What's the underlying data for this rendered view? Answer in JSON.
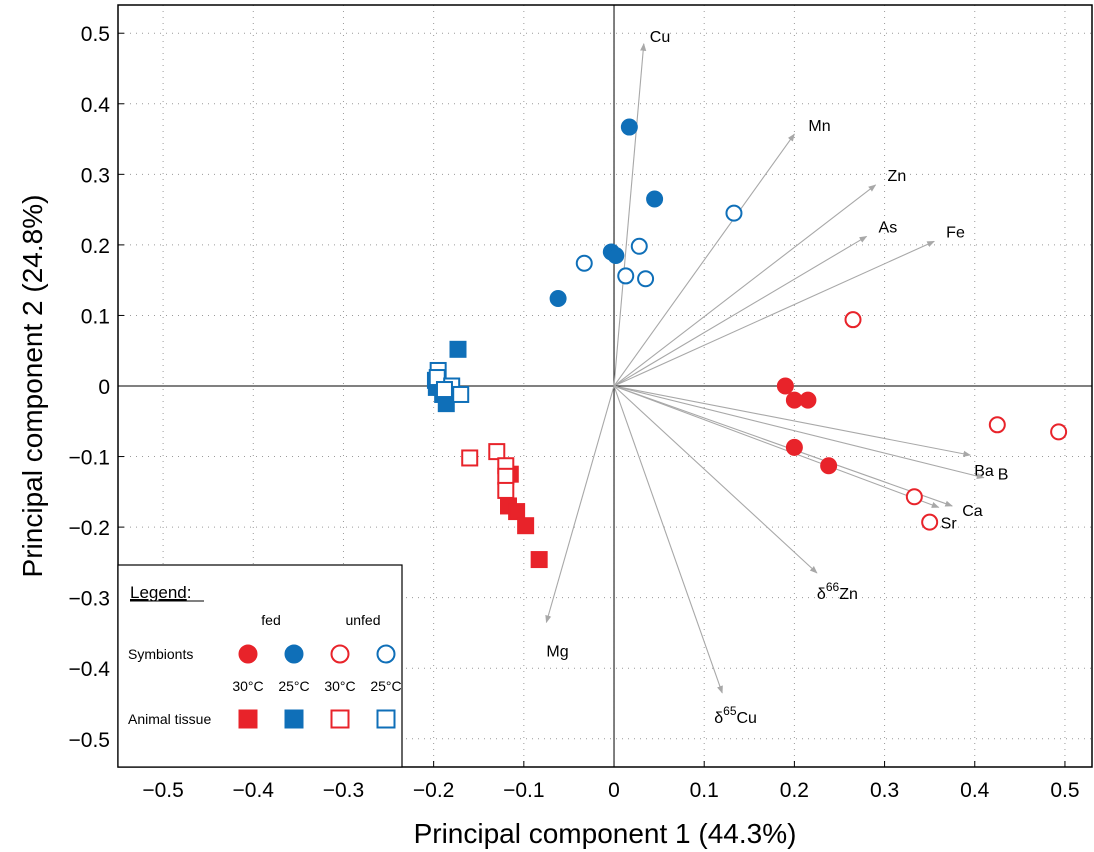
{
  "chart_data": {
    "type": "scatter",
    "xlabel": "Principal component 1 (44.3%)",
    "ylabel": "Principal component 2 (24.8%)",
    "xlim": [
      -0.55,
      0.53
    ],
    "ylim": [
      -0.54,
      0.54
    ],
    "xticks": [
      -0.5,
      -0.4,
      -0.3,
      -0.2,
      -0.1,
      0,
      0.1,
      0.2,
      0.3,
      0.4,
      0.5
    ],
    "yticks": [
      -0.5,
      -0.4,
      -0.3,
      -0.2,
      -0.1,
      0,
      0.1,
      0.2,
      0.3,
      0.4,
      0.5
    ],
    "xtick_labels": [
      "−0.5",
      "−0.4",
      "−0.3",
      "−0.2",
      "−0.1",
      "0",
      "0.1",
      "0.2",
      "0.3",
      "0.4",
      "0.5"
    ],
    "ytick_labels": [
      "−0.5",
      "−0.4",
      "−0.3",
      "−0.2",
      "−0.1",
      "0",
      "0.1",
      "0.2",
      "0.3",
      "0.4",
      "0.5"
    ],
    "grid": true,
    "colors": {
      "red": "#e8232a",
      "blue": "#0f6fb8",
      "arrow": "#a8a8a8"
    },
    "series": [
      {
        "name": "Symbionts fed 30°C",
        "shape": "circle",
        "filled": true,
        "color": "red",
        "points": [
          [
            0.19,
            0.0
          ],
          [
            0.2,
            -0.02
          ],
          [
            0.215,
            -0.02
          ],
          [
            0.2,
            -0.087
          ],
          [
            0.238,
            -0.113
          ]
        ]
      },
      {
        "name": "Symbionts fed 25°C",
        "shape": "circle",
        "filled": true,
        "color": "blue",
        "points": [
          [
            0.017,
            0.367
          ],
          [
            0.045,
            0.265
          ],
          [
            -0.003,
            0.19
          ],
          [
            0.002,
            0.185
          ],
          [
            -0.062,
            0.124
          ]
        ]
      },
      {
        "name": "Symbionts unfed 30°C",
        "shape": "circle",
        "filled": false,
        "color": "red",
        "points": [
          [
            0.265,
            0.094
          ],
          [
            0.425,
            -0.055
          ],
          [
            0.493,
            -0.065
          ],
          [
            0.333,
            -0.157
          ],
          [
            0.35,
            -0.193
          ]
        ]
      },
      {
        "name": "Symbionts unfed 25°C",
        "shape": "circle",
        "filled": false,
        "color": "blue",
        "points": [
          [
            0.133,
            0.245
          ],
          [
            0.028,
            0.198
          ],
          [
            -0.033,
            0.174
          ],
          [
            0.013,
            0.156
          ],
          [
            0.035,
            0.152
          ]
        ]
      },
      {
        "name": "Animal tissue fed 30°C",
        "shape": "square",
        "filled": true,
        "color": "red",
        "points": [
          [
            -0.115,
            -0.125
          ],
          [
            -0.117,
            -0.17
          ],
          [
            -0.108,
            -0.178
          ],
          [
            -0.098,
            -0.198
          ],
          [
            -0.083,
            -0.246
          ]
        ]
      },
      {
        "name": "Animal tissue fed 25°C",
        "shape": "square",
        "filled": true,
        "color": "blue",
        "points": [
          [
            -0.173,
            0.052
          ],
          [
            -0.198,
            0.008
          ],
          [
            -0.197,
            -0.002
          ],
          [
            -0.19,
            -0.012
          ],
          [
            -0.186,
            -0.025
          ]
        ]
      },
      {
        "name": "Animal tissue unfed 30°C",
        "shape": "square",
        "filled": false,
        "color": "red",
        "points": [
          [
            -0.16,
            -0.102
          ],
          [
            -0.13,
            -0.093
          ],
          [
            -0.12,
            -0.113
          ],
          [
            -0.12,
            -0.128
          ],
          [
            -0.12,
            -0.148
          ]
        ]
      },
      {
        "name": "Animal tissue unfed 25°C",
        "shape": "square",
        "filled": false,
        "color": "blue",
        "points": [
          [
            -0.195,
            0.022
          ],
          [
            -0.196,
            0.012
          ],
          [
            -0.18,
            0.0
          ],
          [
            -0.17,
            -0.012
          ],
          [
            -0.188,
            -0.005
          ]
        ]
      }
    ],
    "loadings": [
      {
        "label": "Cu",
        "x": 0.033,
        "y": 0.485
      },
      {
        "label": "Mn",
        "x": 0.2,
        "y": 0.357
      },
      {
        "label": "Zn",
        "x": 0.29,
        "y": 0.285
      },
      {
        "label": "As",
        "x": 0.28,
        "y": 0.212
      },
      {
        "label": "Fe",
        "x": 0.355,
        "y": 0.205
      },
      {
        "label": "Ba",
        "x": 0.395,
        "y": -0.098
      },
      {
        "label": "B",
        "x": 0.41,
        "y": -0.13
      },
      {
        "label": "Ca",
        "x": 0.375,
        "y": -0.17
      },
      {
        "label": "Sr",
        "x": 0.36,
        "y": -0.172
      },
      {
        "label": "δ66Zn",
        "base": "δ",
        "sup": "66",
        "sub": "Zn",
        "x": 0.225,
        "y": -0.265
      },
      {
        "label": "δ65Cu",
        "base": "δ",
        "sup": "65",
        "sub": "Cu",
        "x": 0.12,
        "y": -0.435
      },
      {
        "label": "Mg",
        "x": -0.075,
        "y": -0.335
      }
    ],
    "legend": {
      "title": "Legend",
      "title_suffix": ":",
      "placement": "bottom-left",
      "col_groups": [
        "fed",
        "unfed"
      ],
      "row_labels": [
        "Symbionts",
        "Animal tissue"
      ],
      "temps": [
        "30°C",
        "25°C",
        "30°C",
        "25°C"
      ]
    }
  }
}
